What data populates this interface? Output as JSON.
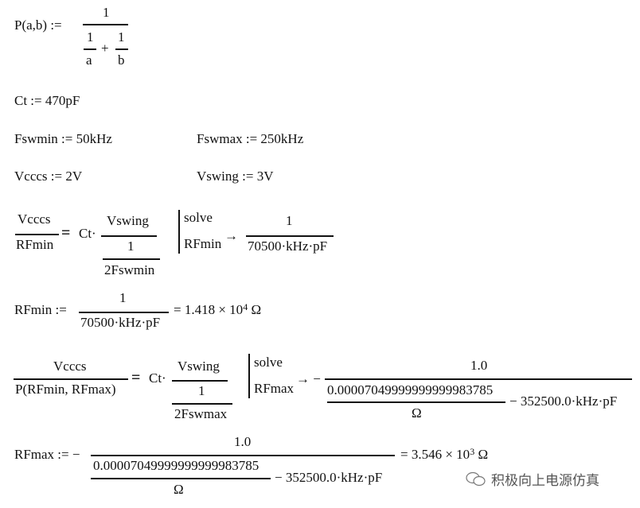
{
  "def_p": {
    "lhs": "P(a,b) :=",
    "num": "1",
    "n1": "1",
    "d1": "a",
    "plus": "+",
    "n2": "1",
    "d2": "b"
  },
  "ct": "Ct := 470pF",
  "fswmin": "Fswmin := 50kHz",
  "fswmax": "Fswmax := 250kHz",
  "vcccs": "Vcccs := 2V",
  "vswing": "Vswing := 3V",
  "eq1": {
    "lhs_num": "Vcccs",
    "lhs_den": "RFmin",
    "eq": "=",
    "ct": "Ct·",
    "r_num": "Vswing",
    "r_den_num": "1",
    "r_den_den": "2Fswmin",
    "solve": "solve",
    "var": "RFmin",
    "arrow": "→",
    "res_num": "1",
    "res_den": "70500·kHz·pF"
  },
  "rfmin": {
    "lhs": "RFmin :=",
    "num": "1",
    "den": "70500·kHz·pF",
    "result": "= 1.418 × 10",
    "exp": "4",
    "unit": "Ω"
  },
  "eq2": {
    "lhs_num": "Vcccs",
    "lhs_den": "P(RFmin, RFmax)",
    "eq": "=",
    "ct": "Ct·",
    "r_num": "Vswing",
    "r_den_num": "1",
    "r_den_den": "2Fswmax",
    "solve": "solve",
    "var": "RFmax",
    "arrow": "→ −",
    "res_num": "1.0",
    "inner_num": "0.00007049999999999983785",
    "inner_den": "Ω",
    "minus_term": "− 352500.0·kHz·pF"
  },
  "rfmax": {
    "lhs": "RFmax := −",
    "num": "1.0",
    "inner_num": "0.00007049999999999983785",
    "inner_den": "Ω",
    "minus_term": "− 352500.0·kHz·pF",
    "result": "= 3.546 × 10",
    "exp": "3",
    "unit": "Ω"
  },
  "watermark": "积极向上电源仿真"
}
